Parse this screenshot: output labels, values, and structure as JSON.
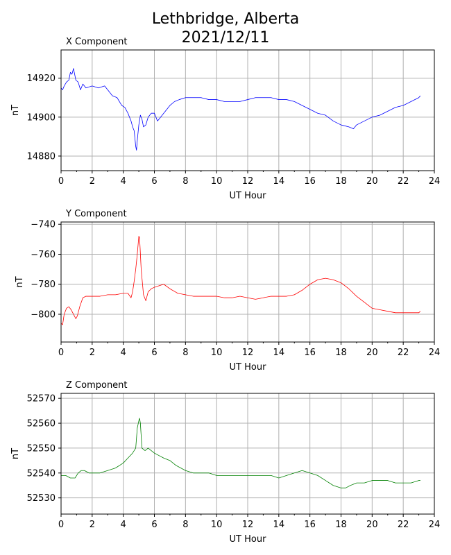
{
  "figure": {
    "title_line1": "Lethbridge, Alberta",
    "title_line2": "2021/12/11"
  },
  "chart_data": [
    {
      "type": "line",
      "title": "X Component",
      "xlabel": "UT Hour",
      "ylabel": "nT",
      "xlim": [
        0,
        24
      ],
      "ylim": [
        14872.5,
        14934.5
      ],
      "xticks": [
        0,
        2,
        4,
        6,
        8,
        10,
        12,
        14,
        16,
        18,
        20,
        22,
        24
      ],
      "yticks": [
        14880,
        14900,
        14920
      ],
      "grid": true,
      "series": [
        {
          "color": "#0000ff",
          "x": [
            0,
            0.1,
            0.2,
            0.35,
            0.5,
            0.6,
            0.7,
            0.8,
            0.85,
            0.95,
            1.1,
            1.25,
            1.4,
            1.6,
            2.0,
            2.4,
            2.8,
            3.0,
            3.3,
            3.6,
            3.9,
            4.1,
            4.3,
            4.5,
            4.6,
            4.7,
            4.8,
            4.85,
            4.9,
            5.0,
            5.1,
            5.2,
            5.3,
            5.45,
            5.6,
            5.8,
            6.0,
            6.2,
            6.4,
            6.6,
            6.8,
            7.0,
            7.3,
            7.6,
            8.0,
            8.5,
            9.0,
            9.5,
            10.0,
            10.5,
            11.0,
            11.5,
            12.0,
            12.5,
            13.0,
            13.5,
            14.0,
            14.5,
            15.0,
            15.5,
            16.0,
            16.5,
            17.0,
            17.5,
            18.0,
            18.5,
            18.8,
            19.0,
            19.5,
            20.0,
            20.5,
            21.0,
            21.5,
            22.0,
            22.5,
            23.0,
            23.1
          ],
          "values": [
            14915,
            14914,
            14916,
            14918,
            14919,
            14923,
            14922,
            14925,
            14923,
            14919,
            14918,
            14914,
            14917,
            14915,
            14916,
            14915,
            14916,
            14914,
            14911,
            14910,
            14906,
            14905,
            14902,
            14898,
            14895,
            14893,
            14885,
            14883,
            14888,
            14896,
            14901,
            14899,
            14895,
            14896,
            14900,
            14902,
            14902,
            14898,
            14900,
            14902,
            14904,
            14906,
            14908,
            14909,
            14910,
            14910,
            14910,
            14909,
            14909,
            14908,
            14908,
            14908,
            14909,
            14910,
            14910,
            14910,
            14909,
            14909,
            14908,
            14906,
            14904,
            14902,
            14901,
            14898,
            14896,
            14895,
            14894,
            14896,
            14898,
            14900,
            14901,
            14903,
            14905,
            14906,
            14908,
            14910,
            14911
          ]
        }
      ]
    },
    {
      "type": "line",
      "title": "Y Component",
      "xlabel": "UT Hour",
      "ylabel": "nT",
      "xlim": [
        0,
        24
      ],
      "ylim": [
        -818.5,
        -738.5
      ],
      "xticks": [
        0,
        2,
        4,
        6,
        8,
        10,
        12,
        14,
        16,
        18,
        20,
        22,
        24
      ],
      "yticks": [
        -800,
        -780,
        -760,
        -740
      ],
      "grid": true,
      "series": [
        {
          "color": "#ff0000",
          "x": [
            0,
            0.1,
            0.2,
            0.35,
            0.5,
            0.65,
            0.8,
            0.95,
            1.05,
            1.2,
            1.4,
            1.6,
            2.0,
            2.5,
            3.0,
            3.5,
            4.0,
            4.3,
            4.5,
            4.6,
            4.7,
            4.8,
            4.9,
            5.0,
            5.05,
            5.15,
            5.3,
            5.45,
            5.6,
            5.8,
            6.0,
            6.3,
            6.6,
            7.0,
            7.5,
            8.0,
            8.5,
            9.0,
            9.5,
            10.0,
            10.5,
            11.0,
            11.5,
            12.0,
            12.5,
            13.0,
            13.5,
            14.0,
            14.5,
            15.0,
            15.5,
            16.0,
            16.5,
            17.0,
            17.5,
            18.0,
            18.5,
            19.0,
            19.5,
            20.0,
            20.5,
            21.0,
            21.5,
            22.0,
            22.5,
            23.0,
            23.1
          ],
          "values": [
            -806,
            -807,
            -800,
            -796,
            -795,
            -797,
            -800,
            -803,
            -801,
            -795,
            -789,
            -788,
            -788,
            -788,
            -787,
            -787,
            -786,
            -786,
            -789,
            -785,
            -778,
            -770,
            -760,
            -748,
            -749,
            -770,
            -787,
            -791,
            -785,
            -783,
            -782,
            -781,
            -780,
            -783,
            -786,
            -787,
            -788,
            -788,
            -788,
            -788,
            -789,
            -789,
            -788,
            -789,
            -790,
            -789,
            -788,
            -788,
            -788,
            -787,
            -784,
            -780,
            -777,
            -776,
            -777,
            -779,
            -783,
            -788,
            -792,
            -796,
            -797,
            -798,
            -799,
            -799,
            -799,
            -799,
            -798
          ]
        }
      ]
    },
    {
      "type": "line",
      "title": "Z Component",
      "xlabel": "UT Hour",
      "ylabel": "nT",
      "xlim": [
        0,
        24
      ],
      "ylim": [
        52523.5,
        52572
      ],
      "xticks": [
        0,
        2,
        4,
        6,
        8,
        10,
        12,
        14,
        16,
        18,
        20,
        22,
        24
      ],
      "yticks": [
        52530,
        52540,
        52550,
        52560,
        52570
      ],
      "grid": true,
      "series": [
        {
          "color": "#008000",
          "x": [
            0,
            0.3,
            0.6,
            0.9,
            1.1,
            1.3,
            1.5,
            1.8,
            2.0,
            2.5,
            3.0,
            3.5,
            4.0,
            4.3,
            4.6,
            4.8,
            4.9,
            5.0,
            5.05,
            5.1,
            5.2,
            5.4,
            5.6,
            5.8,
            6.0,
            6.3,
            6.6,
            7.0,
            7.4,
            8.0,
            8.5,
            9.0,
            9.5,
            10.0,
            10.5,
            11.0,
            11.5,
            12.0,
            12.5,
            13.0,
            13.5,
            14.0,
            14.5,
            15.0,
            15.5,
            16.0,
            16.5,
            17.0,
            17.5,
            18.0,
            18.3,
            18.6,
            19.0,
            19.5,
            20.0,
            20.5,
            21.0,
            21.5,
            22.0,
            22.5,
            23.0,
            23.1
          ],
          "values": [
            52539,
            52539,
            52538,
            52538,
            52540,
            52541,
            52541,
            52540,
            52540,
            52540,
            52541,
            52542,
            52544,
            52546,
            52548,
            52550,
            52558,
            52561,
            52562,
            52560,
            52550,
            52549,
            52550,
            52549,
            52548,
            52547,
            52546,
            52545,
            52543,
            52541,
            52540,
            52540,
            52540,
            52539,
            52539,
            52539,
            52539,
            52539,
            52539,
            52539,
            52539,
            52538,
            52539,
            52540,
            52541,
            52540,
            52539,
            52537,
            52535,
            52534,
            52534,
            52535,
            52536,
            52536,
            52537,
            52537,
            52537,
            52536,
            52536,
            52536,
            52537,
            52537
          ]
        }
      ]
    }
  ]
}
